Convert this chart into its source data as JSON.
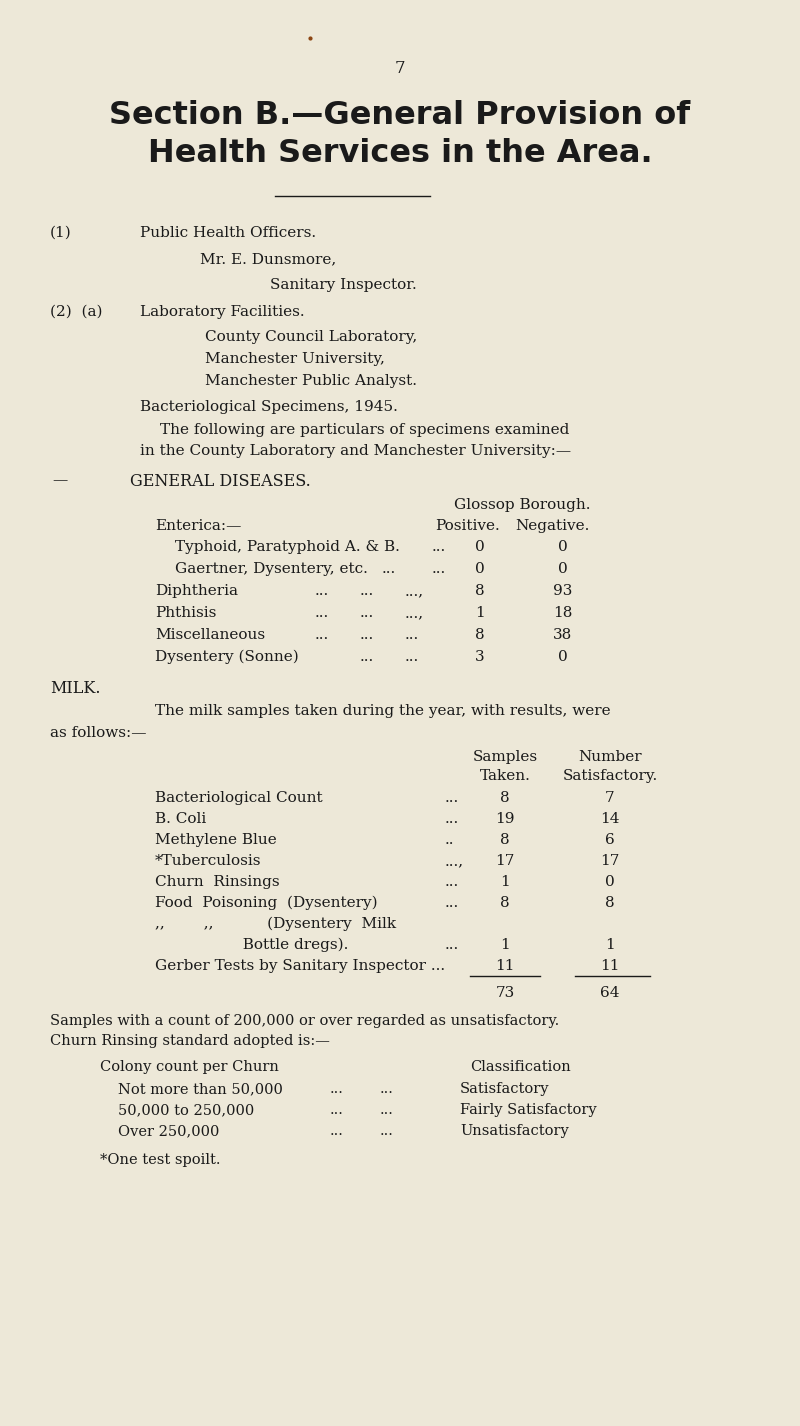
{
  "bg_color": "#ede8d8",
  "text_color": "#1a1a1a",
  "page_number": "7",
  "title_line1": "Section B.—General Provision of",
  "title_line2": "Health Services in the Area.",
  "footnote1": "Samples with a count of 200,000 or over regarded as unsatisfactory.",
  "footnote2": "Churn Rinsing standard adopted is:—",
  "asterisk_note": "*One test spoilt.",
  "milk_total_taken": "73",
  "milk_total_satisfactory": "64"
}
